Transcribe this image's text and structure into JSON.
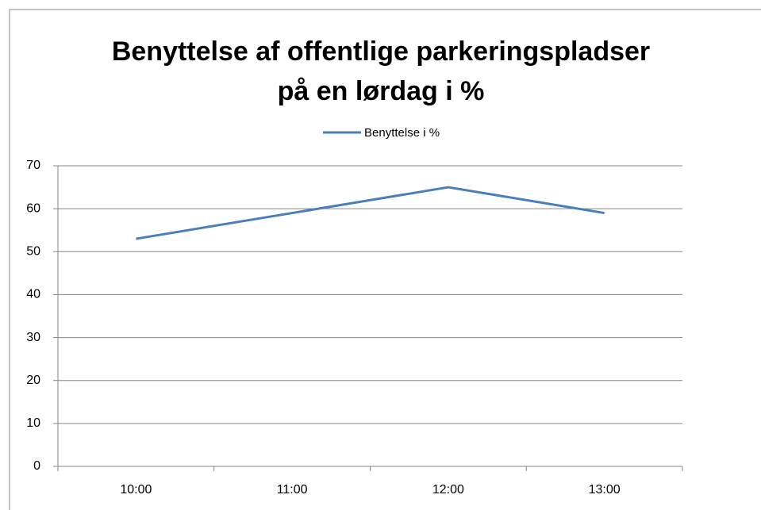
{
  "chart_data": {
    "type": "line",
    "title": "Benyttelse af offentlige parkeringspladser på en lørdag i %",
    "categories": [
      "10:00",
      "11:00",
      "12:00",
      "13:00"
    ],
    "series": [
      {
        "name": "Benyttelse i %",
        "color": "#4a7ebb",
        "values": [
          53,
          59,
          65,
          59
        ]
      }
    ],
    "ylim": [
      0,
      70
    ],
    "yticks": [
      0,
      10,
      20,
      30,
      40,
      50,
      60,
      70
    ],
    "grid": true,
    "legend": "top"
  }
}
